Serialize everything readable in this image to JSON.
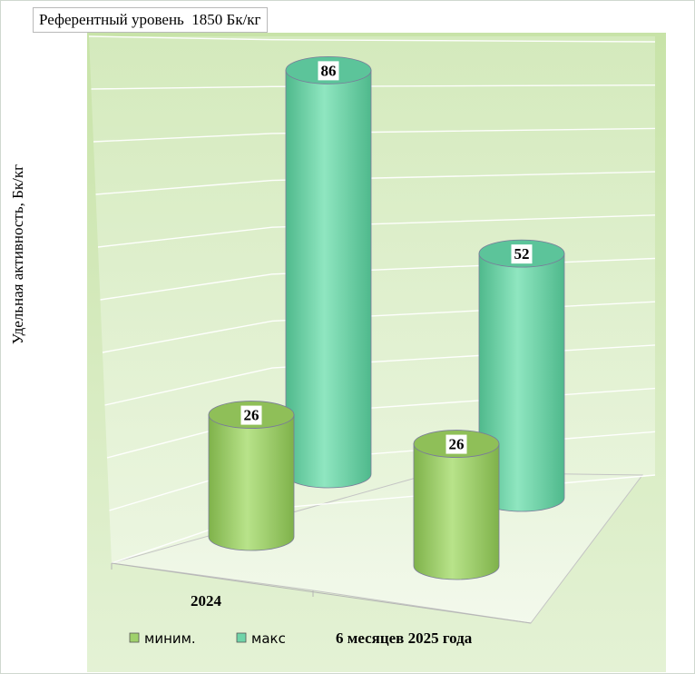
{
  "reference_level": "Референтный уровень  1850 Бк/кг",
  "chart_data": {
    "type": "bar",
    "ylabel": "Удельная активность, Бк/кг",
    "categories": [
      "2024",
      "6 месяцев 2025 года"
    ],
    "series": [
      {
        "name": "миним.",
        "values": [
          26,
          26
        ]
      },
      {
        "name": "макс",
        "values": [
          86,
          52
        ]
      }
    ],
    "ylim": [
      0,
      100
    ],
    "grid": true,
    "legend_position": "bottom",
    "colors": {
      "min": "#9fd16b",
      "max": "#6fd4a8",
      "wall_top": "#d6ebc0",
      "wall_bottom": "#eef7e4"
    }
  }
}
